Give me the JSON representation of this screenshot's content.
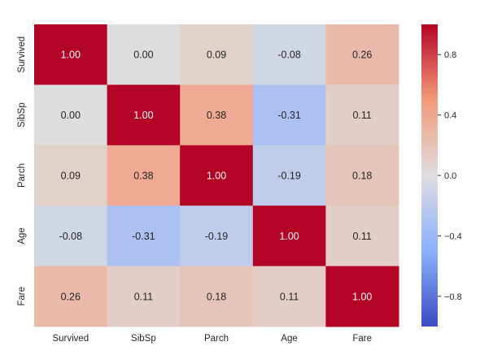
{
  "chart_data": {
    "type": "heatmap",
    "title": "",
    "xlabel": "",
    "ylabel": "",
    "x_labels": [
      "Survived",
      "SibSp",
      "Parch",
      "Age",
      "Fare"
    ],
    "y_labels": [
      "Survived",
      "SibSp",
      "Parch",
      "Age",
      "Fare"
    ],
    "values": [
      [
        1.0,
        0.0,
        0.09,
        -0.08,
        0.26
      ],
      [
        0.0,
        1.0,
        0.38,
        -0.31,
        0.11
      ],
      [
        0.09,
        0.38,
        1.0,
        -0.19,
        0.18
      ],
      [
        -0.08,
        -0.31,
        -0.19,
        1.0,
        0.11
      ],
      [
        0.26,
        0.11,
        0.18,
        0.11,
        1.0
      ]
    ],
    "annotation_format": "0.00",
    "vmin": -1,
    "vmax": 1,
    "colormap": "coolwarm",
    "colorbar": {
      "ticks": [
        0.8,
        0.4,
        0.0,
        -0.4,
        -0.8
      ],
      "tick_labels": [
        "0.8",
        "0.4",
        "0.0",
        "−0.4",
        "−0.8"
      ]
    },
    "grid": false
  }
}
